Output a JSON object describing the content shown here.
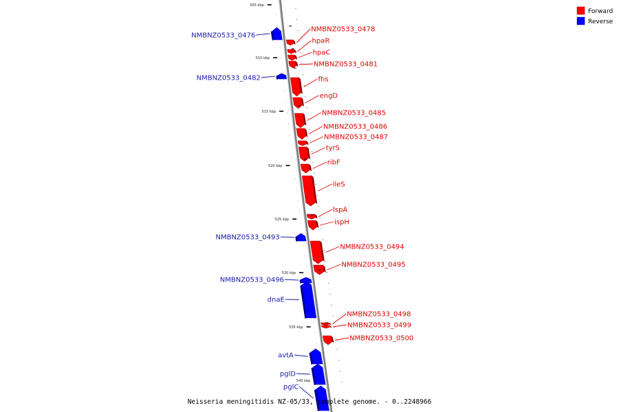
{
  "caption": "Neisseria meningitidis NZ-05/33, complete genome. - 0..2248966",
  "legend": [
    {
      "label": "Forward",
      "color": "#ff0000"
    },
    {
      "label": "Reverse",
      "color": "#0000ff"
    }
  ],
  "colors": {
    "forward": "#ff0000",
    "reverse": "#0000ff",
    "forward_label": "#e00000",
    "reverse_label": "#1a1aa6",
    "backbone": "#888888"
  },
  "scale_ticks": [
    "505 kbp",
    "510 kbp",
    "515 kbp",
    "520 kbp",
    "525 kbp",
    "530 kbp",
    "535 kbp",
    "540 kbp"
  ],
  "genes": [
    {
      "name": "NMBNZ0533_0478",
      "strand": "forward"
    },
    {
      "name": "hpaR",
      "strand": "forward"
    },
    {
      "name": "hpaC",
      "strand": "forward"
    },
    {
      "name": "NMBNZ0533_0481",
      "strand": "forward"
    },
    {
      "name": "fhs",
      "strand": "forward"
    },
    {
      "name": "engD",
      "strand": "forward"
    },
    {
      "name": "NMBNZ0533_0485",
      "strand": "forward"
    },
    {
      "name": "NMBNZ0533_0486",
      "strand": "forward"
    },
    {
      "name": "NMBNZ0533_0487",
      "strand": "forward"
    },
    {
      "name": "tyrS",
      "strand": "forward"
    },
    {
      "name": "ribF",
      "strand": "forward"
    },
    {
      "name": "ileS",
      "strand": "forward"
    },
    {
      "name": "lspA",
      "strand": "forward"
    },
    {
      "name": "ispH",
      "strand": "forward"
    },
    {
      "name": "NMBNZ0533_0494",
      "strand": "forward"
    },
    {
      "name": "NMBNZ0533_0495",
      "strand": "forward"
    },
    {
      "name": "NMBNZ0533_0498",
      "strand": "forward"
    },
    {
      "name": "NMBNZ0533_0499",
      "strand": "forward"
    },
    {
      "name": "NMBNZ0533_0500",
      "strand": "forward"
    },
    {
      "name": "NMBNZ0533_0476",
      "strand": "reverse"
    },
    {
      "name": "NMBNZ0533_0482",
      "strand": "reverse"
    },
    {
      "name": "NMBNZ0533_0493",
      "strand": "reverse"
    },
    {
      "name": "NMBNZ0533_0496",
      "strand": "reverse"
    },
    {
      "name": "dnaE",
      "strand": "reverse"
    },
    {
      "name": "avtA",
      "strand": "reverse"
    },
    {
      "name": "pglD",
      "strand": "reverse"
    },
    {
      "name": "pglC",
      "strand": "reverse"
    }
  ]
}
